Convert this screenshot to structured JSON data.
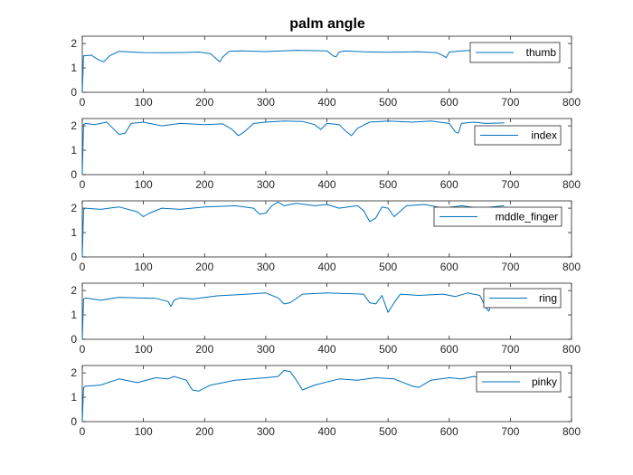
{
  "figure": {
    "title": "palm angle"
  },
  "chart_data": [
    {
      "type": "line",
      "title": "palm angle",
      "xlim": [
        0,
        800
      ],
      "ylim": [
        0,
        2.3
      ],
      "xticks": [
        0,
        100,
        200,
        300,
        400,
        500,
        600,
        700,
        800
      ],
      "yticks": [
        0,
        1,
        2
      ],
      "legend_placement": "top-right",
      "series": [
        {
          "name": "thumb",
          "color": "#0072BD",
          "x": [
            0,
            2,
            4,
            15,
            25,
            35,
            45,
            60,
            80,
            100,
            130,
            160,
            190,
            210,
            220,
            225,
            230,
            240,
            260,
            300,
            350,
            400,
            410,
            415,
            420,
            430,
            460,
            500,
            550,
            580,
            590,
            595,
            600,
            620,
            640,
            660,
            690
          ],
          "y": [
            0,
            1.5,
            1.5,
            1.52,
            1.35,
            1.25,
            1.5,
            1.68,
            1.65,
            1.63,
            1.62,
            1.63,
            1.65,
            1.58,
            1.35,
            1.25,
            1.45,
            1.68,
            1.7,
            1.67,
            1.72,
            1.7,
            1.5,
            1.45,
            1.65,
            1.7,
            1.66,
            1.64,
            1.66,
            1.62,
            1.5,
            1.42,
            1.65,
            1.7,
            1.72,
            1.68,
            1.7
          ]
        },
        {
          "name": "index",
          "color": "#0072BD",
          "x": [
            0,
            2,
            5,
            20,
            40,
            50,
            60,
            70,
            80,
            100,
            130,
            160,
            200,
            230,
            245,
            255,
            265,
            280,
            300,
            330,
            360,
            380,
            390,
            400,
            420,
            430,
            440,
            450,
            470,
            500,
            540,
            570,
            600,
            610,
            615,
            620,
            640,
            660,
            690
          ],
          "y": [
            0,
            2.05,
            2.1,
            2.05,
            2.15,
            1.9,
            1.65,
            1.7,
            2.1,
            2.15,
            2.0,
            2.1,
            2.05,
            2.08,
            1.85,
            1.6,
            1.75,
            2.1,
            2.15,
            2.2,
            2.18,
            2.05,
            1.85,
            2.1,
            2.05,
            1.8,
            1.6,
            1.9,
            2.15,
            2.2,
            2.15,
            2.2,
            2.1,
            1.75,
            1.7,
            2.1,
            2.15,
            2.1,
            2.12
          ]
        },
        {
          "name": "mddle_finger",
          "color": "#0072BD",
          "x": [
            0,
            2,
            5,
            30,
            60,
            90,
            100,
            110,
            130,
            160,
            200,
            250,
            280,
            290,
            300,
            310,
            320,
            330,
            350,
            380,
            400,
            420,
            450,
            460,
            470,
            480,
            490,
            500,
            510,
            530,
            560,
            590,
            620,
            650,
            670,
            690
          ],
          "y": [
            0,
            1.95,
            2.0,
            1.95,
            2.05,
            1.85,
            1.65,
            1.8,
            2.0,
            1.95,
            2.05,
            2.1,
            2.0,
            1.75,
            1.8,
            2.1,
            2.25,
            2.1,
            2.2,
            2.1,
            2.15,
            2.0,
            2.1,
            1.9,
            1.45,
            1.6,
            2.05,
            2.0,
            1.65,
            2.1,
            2.15,
            2.0,
            2.1,
            2.0,
            2.05,
            2.1
          ]
        },
        {
          "name": "ring",
          "color": "#0072BD",
          "x": [
            0,
            2,
            5,
            30,
            60,
            90,
            120,
            140,
            145,
            150,
            160,
            180,
            220,
            270,
            300,
            320,
            330,
            340,
            360,
            400,
            460,
            470,
            480,
            490,
            500,
            510,
            520,
            550,
            590,
            610,
            630,
            650,
            660,
            665,
            670,
            690
          ],
          "y": [
            0,
            1.65,
            1.7,
            1.6,
            1.72,
            1.7,
            1.68,
            1.55,
            1.35,
            1.6,
            1.7,
            1.65,
            1.78,
            1.85,
            1.9,
            1.7,
            1.45,
            1.5,
            1.85,
            1.9,
            1.85,
            1.5,
            1.45,
            1.8,
            1.1,
            1.5,
            1.85,
            1.8,
            1.85,
            1.75,
            1.9,
            1.8,
            1.3,
            1.15,
            1.6,
            1.75
          ]
        },
        {
          "name": "pinky",
          "color": "#0072BD",
          "x": [
            0,
            2,
            5,
            30,
            60,
            90,
            120,
            140,
            150,
            170,
            180,
            190,
            210,
            250,
            300,
            320,
            330,
            340,
            350,
            360,
            380,
            420,
            450,
            480,
            510,
            540,
            550,
            570,
            600,
            620,
            640,
            650,
            660,
            670,
            680,
            690
          ],
          "y": [
            0,
            1.4,
            1.45,
            1.5,
            1.75,
            1.6,
            1.8,
            1.75,
            1.85,
            1.7,
            1.3,
            1.25,
            1.5,
            1.7,
            1.8,
            1.85,
            2.1,
            2.05,
            1.7,
            1.3,
            1.5,
            1.75,
            1.7,
            1.8,
            1.75,
            1.45,
            1.4,
            1.7,
            1.8,
            1.75,
            1.85,
            1.8,
            1.35,
            1.4,
            1.25,
            1.3
          ]
        }
      ]
    }
  ]
}
